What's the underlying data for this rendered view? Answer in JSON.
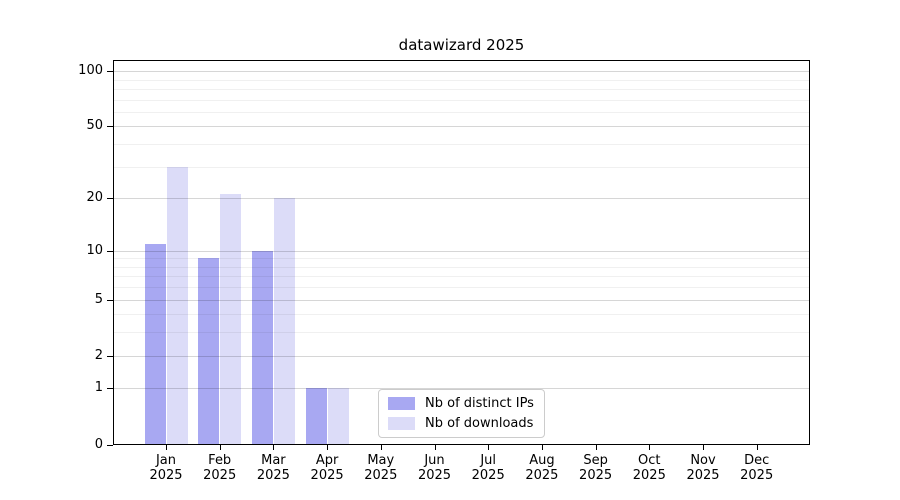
{
  "title": "datawizard 2025",
  "chart_data": {
    "type": "bar",
    "title": "datawizard 2025",
    "categories": [
      "Jan 2025",
      "Feb 2025",
      "Mar 2025",
      "Apr 2025",
      "May 2025",
      "Jun 2025",
      "Jul 2025",
      "Aug 2025",
      "Sep 2025",
      "Oct 2025",
      "Nov 2025",
      "Dec 2025"
    ],
    "x_axis": {
      "months": [
        "Jan",
        "Feb",
        "Mar",
        "Apr",
        "May",
        "Jun",
        "Jul",
        "Aug",
        "Sep",
        "Oct",
        "Nov",
        "Dec"
      ],
      "year": "2025"
    },
    "series": [
      {
        "name": "Nb of distinct IPs",
        "color": "#a8a8f2",
        "values": [
          11,
          9,
          10,
          1,
          0,
          0,
          0,
          0,
          0,
          0,
          0,
          0
        ]
      },
      {
        "name": "Nb of downloads",
        "color": "#dcdcf8",
        "values": [
          30,
          21,
          20,
          1,
          0,
          0,
          0,
          0,
          0,
          0,
          0,
          0
        ]
      }
    ],
    "y_axis": {
      "scale": "log1p",
      "range": [
        0,
        115
      ],
      "ticks": [
        0,
        1,
        2,
        5,
        10,
        20,
        50,
        100
      ],
      "minor_ticks": [
        3,
        4,
        6,
        7,
        8,
        9,
        30,
        40,
        60,
        70,
        80,
        90
      ]
    },
    "grid": true,
    "legend": {
      "position": "bottom-center",
      "items": [
        "Nb of distinct IPs",
        "Nb of downloads"
      ]
    },
    "colors": {
      "background": "#ffffff",
      "spine": "#000000",
      "text": "#000000",
      "major_grid": "rgba(0,0,0,0.16)",
      "minor_grid": "rgba(0,0,0,0.06)"
    }
  }
}
